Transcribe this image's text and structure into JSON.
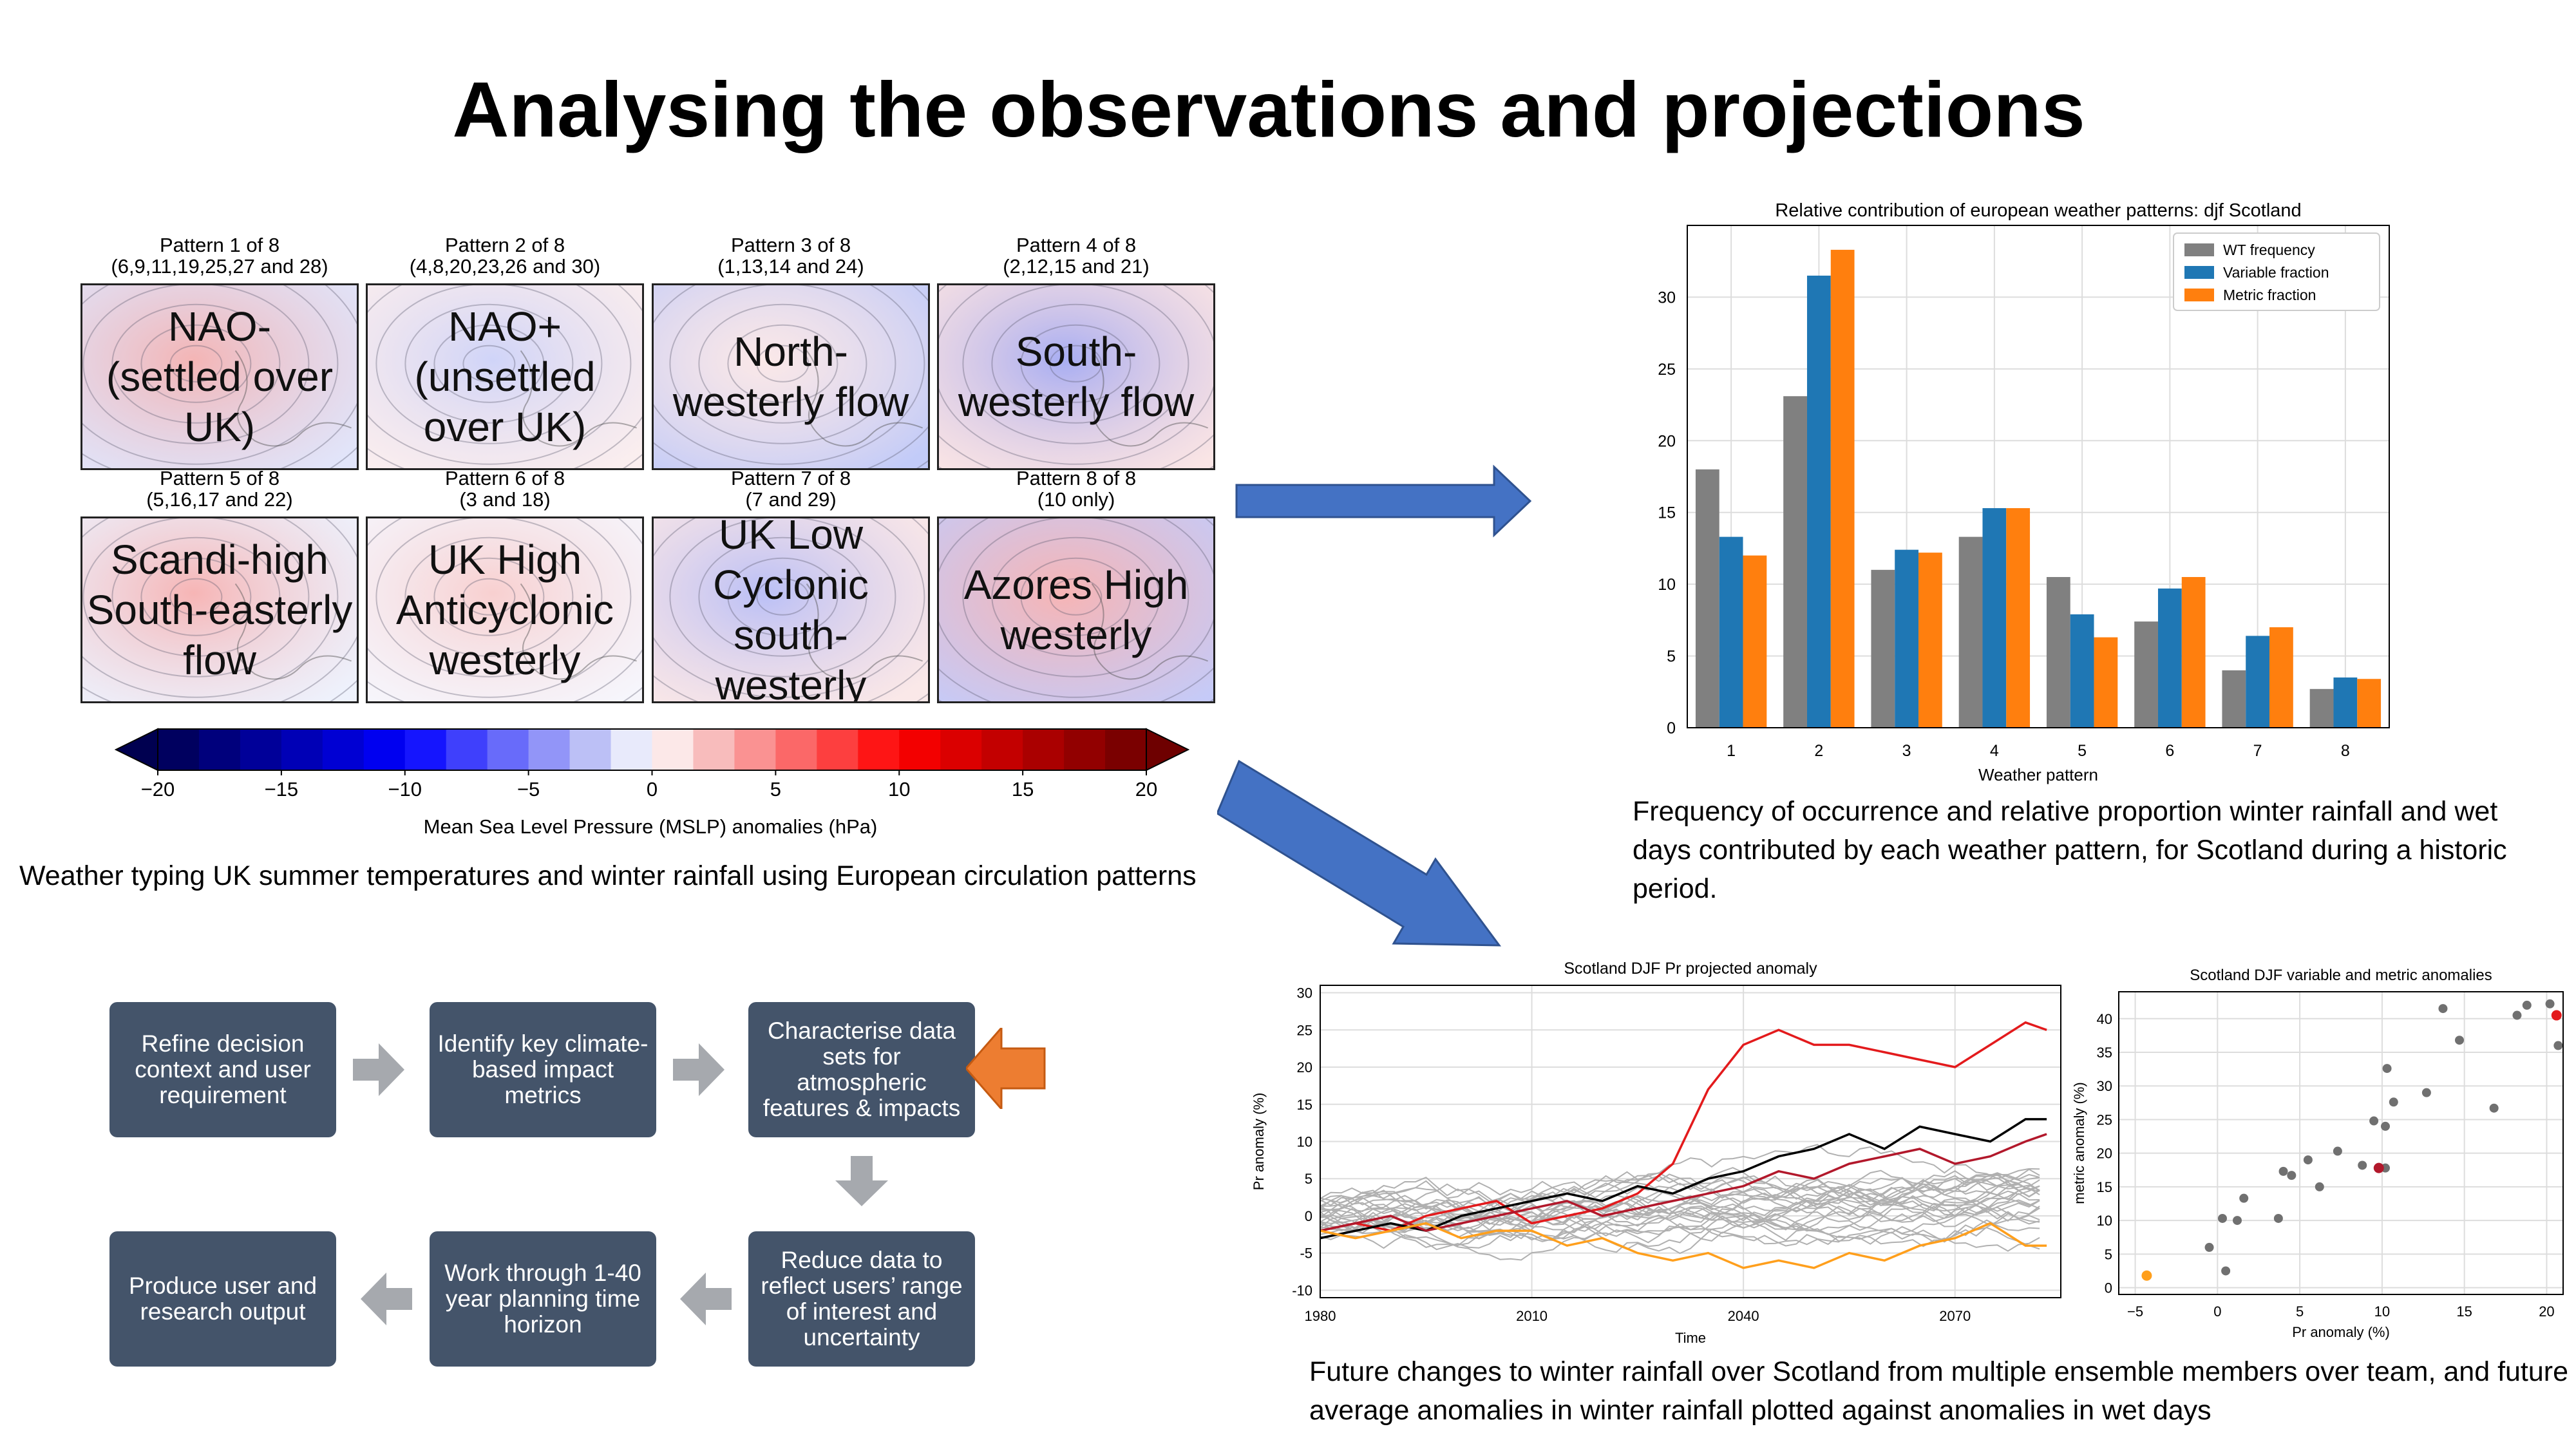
{
  "title": "Analysing the observations and projections",
  "patterns": [
    {
      "caption1": "Pattern 1 of 8",
      "caption2": "(6,9,11,19,25,27 and 28)",
      "label": "NAO-\n(settled over\nUK)"
    },
    {
      "caption1": "Pattern 2 of 8",
      "caption2": "(4,8,20,23,26 and 30)",
      "label": "NAO+\n(unsettled\nover UK)"
    },
    {
      "caption1": "Pattern 3 of 8",
      "caption2": "(1,13,14 and 24)",
      "label": "North-\nwesterly flow"
    },
    {
      "caption1": "Pattern 4 of 8",
      "caption2": "(2,12,15 and 21)",
      "label": "South-\nwesterly flow"
    },
    {
      "caption1": "Pattern 5 of 8",
      "caption2": "(5,16,17 and 22)",
      "label": "Scandi-high\nSouth-easterly\nflow"
    },
    {
      "caption1": "Pattern 6 of 8",
      "caption2": "(3 and 18)",
      "label": "UK High\nAnticyclonic\nwesterly"
    },
    {
      "caption1": "Pattern 7 of 8",
      "caption2": "(7 and 29)",
      "label": "UK Low\nCyclonic\nsouth-\nwesterly"
    },
    {
      "caption1": "Pattern 8 of 8",
      "caption2": "(10 only)",
      "label": "Azores High\nwesterly"
    }
  ],
  "colorbar": {
    "label": "Mean Sea Level Pressure (MSLP) anomalies (hPa)",
    "ticks": [
      "−20",
      "−15",
      "−10",
      "−5",
      "0",
      "5",
      "10",
      "15",
      "20"
    ],
    "range": [
      -20,
      20
    ]
  },
  "left_caption": "Weather typing UK summer temperatures and winter rainfall using European circulation patterns",
  "right_caption": "Frequency of occurrence and relative proportion winter rainfall and wet days contributed by each weather pattern, for Scotland during a historic period.",
  "bottom_caption": "Future changes to winter rainfall over Scotland from multiple ensemble members over team, and future average anomalies in winter rainfall plotted against anomalies in wet days",
  "flow": {
    "step1": "Refine decision context and user requirement",
    "step2": "Identify key climate-based impact metrics",
    "step3": "Characterise data sets for atmospheric features & impacts",
    "step4": "Reduce data to reflect users’ range of interest and uncertainty",
    "step5": "Work through 1-40 year planning time horizon",
    "step6": "Produce user and research output"
  },
  "chart_data": [
    {
      "type": "bar",
      "title": "Relative contribution of european weather patterns: djf Scotland",
      "xlabel": "Weather pattern",
      "ylabel": "",
      "categories": [
        "1",
        "2",
        "3",
        "4",
        "5",
        "6",
        "7",
        "8"
      ],
      "ylim": [
        0,
        35
      ],
      "yticks": [
        0,
        5,
        10,
        15,
        20,
        25,
        30
      ],
      "grid": true,
      "legend": "top-right",
      "series": [
        {
          "name": "WT frequency",
          "color": "#808080",
          "values": [
            18.0,
            23.1,
            11.0,
            13.3,
            10.5,
            7.4,
            4.0,
            2.7
          ]
        },
        {
          "name": "Variable fraction",
          "color": "#1f77b4",
          "values": [
            13.3,
            31.5,
            12.4,
            15.3,
            7.9,
            9.7,
            6.4,
            3.5
          ]
        },
        {
          "name": "Metric fraction",
          "color": "#ff7f0e",
          "values": [
            12.0,
            33.3,
            12.2,
            15.3,
            6.3,
            10.5,
            7.0,
            3.4
          ]
        }
      ]
    },
    {
      "type": "line",
      "title": "Scotland DJF Pr projected anomaly",
      "xlabel": "Time",
      "ylabel": "Pr anomaly (%)",
      "xlim": [
        1980,
        2085
      ],
      "ylim": [
        -11,
        31
      ],
      "xticks": [
        1980,
        2010,
        2040,
        2070
      ],
      "yticks": [
        -10,
        -5,
        0,
        5,
        10,
        15,
        20,
        25,
        30
      ],
      "grid": true,
      "highlighted_series": [
        {
          "color": "#e31a1c",
          "x": [
            1980,
            1985,
            1990,
            1995,
            2000,
            2005,
            2010,
            2015,
            2020,
            2025,
            2030,
            2035,
            2040,
            2045,
            2050,
            2055,
            2060,
            2065,
            2070,
            2075,
            2080,
            2083
          ],
          "values": [
            -2,
            -1,
            -2,
            0,
            1,
            2,
            -1,
            0,
            1,
            3,
            7,
            17,
            23,
            25,
            23,
            23,
            22,
            21,
            20,
            23,
            26,
            25
          ]
        },
        {
          "color": "#000000",
          "x": [
            1980,
            1985,
            1990,
            1995,
            2000,
            2005,
            2010,
            2015,
            2020,
            2025,
            2030,
            2035,
            2040,
            2045,
            2050,
            2055,
            2060,
            2065,
            2070,
            2075,
            2080,
            2083
          ],
          "values": [
            -3,
            -2,
            -1,
            -2,
            0,
            1,
            2,
            3,
            2,
            4,
            3,
            5,
            6,
            8,
            9,
            11,
            9,
            12,
            11,
            10,
            13,
            13
          ]
        },
        {
          "color": "#b2182b",
          "x": [
            1980,
            1985,
            1990,
            1995,
            2000,
            2005,
            2010,
            2015,
            2020,
            2025,
            2030,
            2035,
            2040,
            2045,
            2050,
            2055,
            2060,
            2065,
            2070,
            2075,
            2080,
            2083
          ],
          "values": [
            -2,
            -1,
            0,
            -2,
            -1,
            0,
            1,
            2,
            0,
            1,
            2,
            3,
            4,
            6,
            5,
            7,
            8,
            9,
            7,
            8,
            10,
            11
          ]
        },
        {
          "color": "#ff9f1c",
          "x": [
            1980,
            1985,
            1990,
            1995,
            2000,
            2005,
            2010,
            2015,
            2020,
            2025,
            2030,
            2035,
            2040,
            2045,
            2050,
            2055,
            2060,
            2065,
            2070,
            2075,
            2080,
            2083
          ],
          "values": [
            -2,
            -3,
            -2,
            -1,
            -3,
            -2,
            -2,
            -4,
            -3,
            -5,
            -6,
            -5,
            -7,
            -6,
            -7,
            -5,
            -6,
            -4,
            -3,
            -1,
            -4,
            -4
          ]
        }
      ]
    },
    {
      "type": "scatter",
      "title": "Scotland DJF variable and metric anomalies",
      "xlabel": "Pr anomaly (%)",
      "ylabel": "metric anomaly (%)",
      "xlim": [
        -6,
        21
      ],
      "ylim": [
        -1,
        44
      ],
      "xticks": [
        -5,
        0,
        5,
        10,
        15,
        20
      ],
      "yticks": [
        0,
        5,
        10,
        15,
        20,
        25,
        30,
        35,
        40
      ],
      "grid": true,
      "points": [
        {
          "x": -0.5,
          "y": 6
        },
        {
          "x": 0.3,
          "y": 10.3
        },
        {
          "x": 0.5,
          "y": 2.5
        },
        {
          "x": 1.2,
          "y": 10
        },
        {
          "x": 1.6,
          "y": 13.3
        },
        {
          "x": 3.7,
          "y": 10.3
        },
        {
          "x": 4,
          "y": 17.3
        },
        {
          "x": 4.5,
          "y": 16.7
        },
        {
          "x": 5.5,
          "y": 19
        },
        {
          "x": 6.2,
          "y": 15
        },
        {
          "x": 7.3,
          "y": 20.3
        },
        {
          "x": 8.8,
          "y": 18.2
        },
        {
          "x": 9.5,
          "y": 24.8
        },
        {
          "x": 10.2,
          "y": 17.8
        },
        {
          "x": 10.2,
          "y": 24
        },
        {
          "x": 10.3,
          "y": 32.6
        },
        {
          "x": 10.7,
          "y": 27.6
        },
        {
          "x": 12.7,
          "y": 29
        },
        {
          "x": 13.7,
          "y": 41.5
        },
        {
          "x": 14.7,
          "y": 36.8
        },
        {
          "x": 16.8,
          "y": 26.7
        },
        {
          "x": 18.2,
          "y": 40.5
        },
        {
          "x": 18.8,
          "y": 42
        },
        {
          "x": 20.2,
          "y": 42.2
        },
        {
          "x": 20.7,
          "y": 36
        }
      ],
      "highlighted_points": [
        {
          "x": -4.3,
          "y": 1.8,
          "color": "#ff9f1c"
        },
        {
          "x": 9.8,
          "y": 17.8,
          "color": "#b2182b"
        },
        {
          "x": 20.6,
          "y": 40.5,
          "color": "#e31a1c"
        }
      ]
    }
  ]
}
